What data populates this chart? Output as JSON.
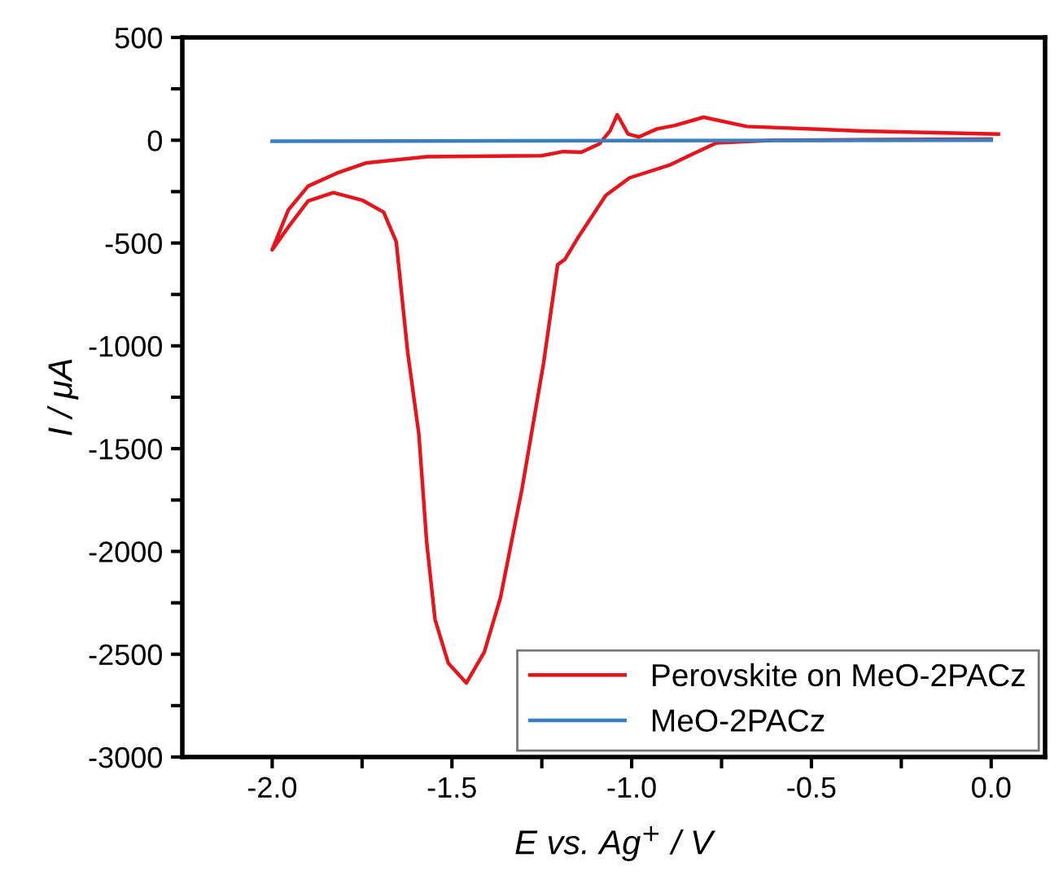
{
  "chart_data": {
    "type": "line",
    "xlabel": "E vs. Ag$^{+}$ / V",
    "ylabel": "I / μA",
    "xlim": [
      -2.25,
      0.15
    ],
    "ylim": [
      -3000,
      500
    ],
    "xticks": [
      {
        "value": -2.0,
        "label": "-2.0"
      },
      {
        "value": -1.75,
        "label": null
      },
      -1.5,
      {
        "value": -1.25,
        "label": null
      },
      {
        "value": -1.0,
        "label": "-1.0"
      },
      {
        "value": -0.75,
        "label": null
      },
      -0.5,
      {
        "value": -0.25,
        "label": null
      },
      {
        "value": 0.0,
        "label": "0.0"
      }
    ],
    "yticks": [
      -3000,
      {
        "value": -2750,
        "label": null
      },
      -2500,
      {
        "value": -2250,
        "label": null
      },
      -2000,
      {
        "value": -1750,
        "label": null
      },
      -1500,
      {
        "value": -1250,
        "label": null
      },
      -1000,
      {
        "value": -750,
        "label": null
      },
      -500,
      {
        "value": -250,
        "label": null
      },
      0,
      {
        "value": 250,
        "label": null
      },
      500
    ],
    "grid": false,
    "legend": "bottom right",
    "marker": "none",
    "line_style": "solid",
    "series": [
      {
        "name": "Perovskite on MeO-2PACz",
        "color": "#e8141c",
        "x": [
          0.02,
          -0.36,
          -0.68,
          -0.8,
          -0.88,
          -0.93,
          -0.98,
          -1.01,
          -1.04,
          -1.06,
          -1.09,
          -1.14,
          -1.19,
          -1.25,
          -1.57,
          -1.74,
          -1.82,
          -1.9,
          -1.955,
          -2.0,
          -1.955,
          -1.9,
          -1.83,
          -1.75,
          -1.69,
          -1.655,
          -1.623,
          -1.592,
          -1.57,
          -1.547,
          -1.51,
          -1.46,
          -1.41,
          -1.365,
          -1.305,
          -1.245,
          -1.206,
          -1.186,
          -1.152,
          -1.072,
          -1.006,
          -0.892,
          -0.827,
          -0.764,
          -0.6,
          -0.3,
          0.0
        ],
        "values": [
          30,
          45,
          67,
          112,
          72,
          55,
          16,
          30,
          124,
          46,
          -18,
          -58,
          -55,
          -75,
          -80,
          -111,
          -160,
          -223,
          -339,
          -533,
          -422,
          -295,
          -255,
          -291,
          -350,
          -493,
          -1032,
          -1430,
          -1960,
          -2331,
          -2544,
          -2640,
          -2490,
          -2225,
          -1695,
          -1083,
          -605,
          -580,
          -481,
          -268,
          -183,
          -119,
          -64,
          -13,
          0,
          3,
          5
        ]
      },
      {
        "name": "MeO-2PACz",
        "color": "#3a7fc0",
        "x": [
          -2.0,
          -1.0,
          0.0
        ],
        "values": [
          -5,
          -2,
          0
        ]
      }
    ]
  }
}
